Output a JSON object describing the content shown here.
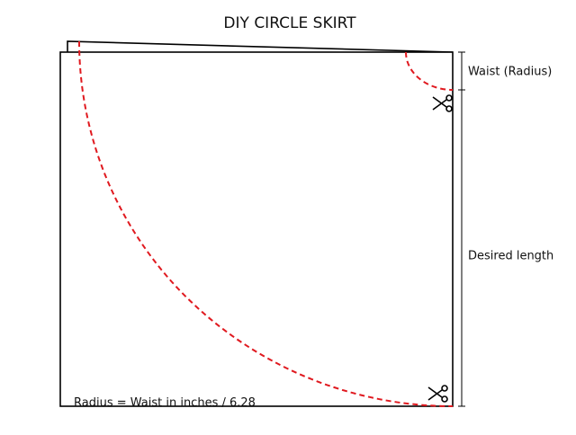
{
  "title": "DIY CIRCLE SKIRT",
  "labels": {
    "waist": "Waist (Radius)",
    "length": "Desired length",
    "formula": "Radius = Waist in inches / 6.28"
  }
}
